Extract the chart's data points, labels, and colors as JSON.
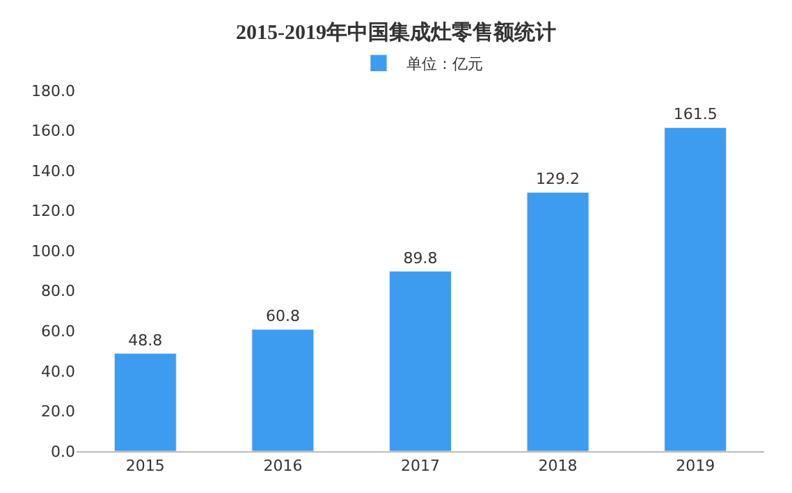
{
  "chart_data": {
    "type": "bar",
    "title": "2015-2019年中国集成灶零售额统计",
    "categories": [
      "2015",
      "2016",
      "2017",
      "2018",
      "2019"
    ],
    "series": [
      {
        "name": "单位：亿元",
        "color": "#3d9bf0",
        "values": [
          48.8,
          60.8,
          89.8,
          129.2,
          161.5
        ]
      }
    ],
    "ylim": [
      0,
      180
    ],
    "yticks": [
      {
        "value": 0,
        "label": "0.0"
      },
      {
        "value": 20,
        "label": "20.0"
      },
      {
        "value": 40,
        "label": "40.0"
      },
      {
        "value": 60,
        "label": "60.0"
      },
      {
        "value": 80,
        "label": "80.0"
      },
      {
        "value": 100,
        "label": "100.0"
      },
      {
        "value": 120,
        "label": "120.0"
      },
      {
        "value": 140,
        "label": "140.0"
      },
      {
        "value": 160,
        "label": "160.0"
      },
      {
        "value": 180,
        "label": "180.0"
      }
    ],
    "data_labels": true,
    "legend": "top"
  }
}
